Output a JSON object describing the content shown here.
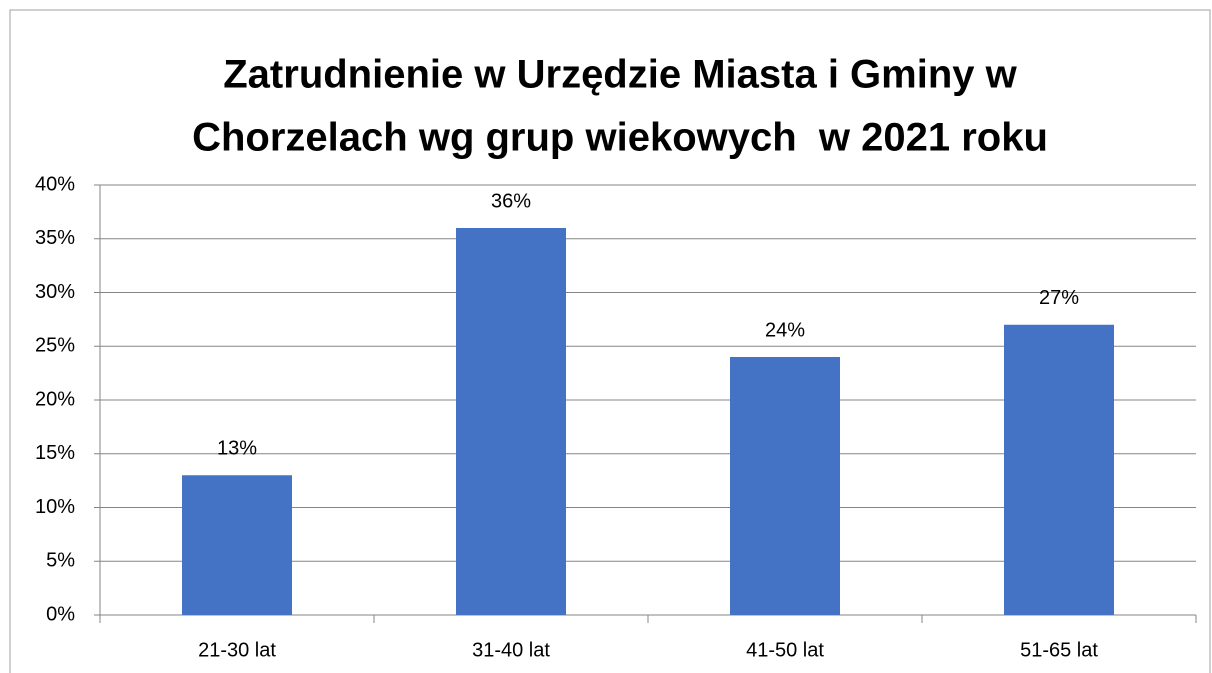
{
  "chart_data": {
    "type": "bar",
    "title": [
      "Zatrudnienie w Urzędzie Miasta i Gminy w",
      "Chorzelach wg grup wiekowych  w 2021 roku"
    ],
    "categories": [
      "21-30 lat",
      "31-40 lat",
      "41-50 lat",
      "51-65 lat"
    ],
    "values": [
      13,
      36,
      24,
      27
    ],
    "value_labels": [
      "13%",
      "36%",
      "24%",
      "27%"
    ],
    "color": "#4472c4",
    "ylim": [
      0,
      40
    ],
    "yticks": [
      {
        "value": 0,
        "label": "0%"
      },
      {
        "value": 5,
        "label": "5%"
      },
      {
        "value": 10,
        "label": "10%"
      },
      {
        "value": 15,
        "label": "15%"
      },
      {
        "value": 20,
        "label": "20%"
      },
      {
        "value": 25,
        "label": "25%"
      },
      {
        "value": 30,
        "label": "30%"
      },
      {
        "value": 35,
        "label": "35%"
      },
      {
        "value": 40,
        "label": "40%"
      }
    ],
    "grid": true
  }
}
